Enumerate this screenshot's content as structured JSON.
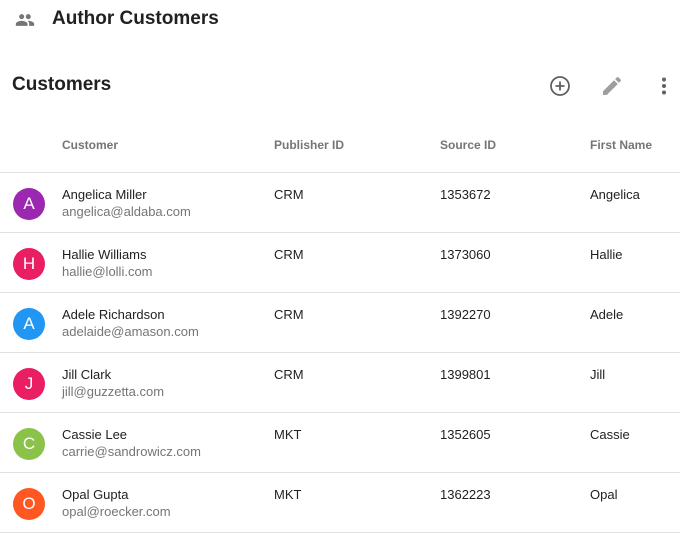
{
  "header": {
    "title": "Author Customers",
    "icon": "people-icon"
  },
  "toolbar": {
    "title": "Customers",
    "actions": [
      {
        "name": "add",
        "icon": "add-circle-icon"
      },
      {
        "name": "edit",
        "icon": "pencil-icon"
      },
      {
        "name": "more",
        "icon": "more-vert-icon"
      }
    ]
  },
  "table": {
    "columns": [
      "Customer",
      "Publisher ID",
      "Source ID",
      "First Name"
    ],
    "rows": [
      {
        "initial": "A",
        "color": "#9c27b0",
        "name": "Angelica Miller",
        "email": "angelica@aldaba.com",
        "publisher": "CRM",
        "source": "1353672",
        "first": "Angelica"
      },
      {
        "initial": "H",
        "color": "#e91e63",
        "name": "Hallie Williams",
        "email": "hallie@lolli.com",
        "publisher": "CRM",
        "source": "1373060",
        "first": "Hallie"
      },
      {
        "initial": "A",
        "color": "#2196f3",
        "name": "Adele Richardson",
        "email": "adelaide@amason.com",
        "publisher": "CRM",
        "source": "1392270",
        "first": "Adele"
      },
      {
        "initial": "J",
        "color": "#e91e63",
        "name": "Jill Clark",
        "email": "jill@guzzetta.com",
        "publisher": "CRM",
        "source": "1399801",
        "first": "Jill"
      },
      {
        "initial": "C",
        "color": "#8bc34a",
        "name": "Cassie Lee",
        "email": "carrie@sandrowicz.com",
        "publisher": "MKT",
        "source": "1352605",
        "first": "Cassie"
      },
      {
        "initial": "O",
        "color": "#ff5722",
        "name": "Opal Gupta",
        "email": "opal@roecker.com",
        "publisher": "MKT",
        "source": "1362223",
        "first": "Opal"
      }
    ]
  }
}
